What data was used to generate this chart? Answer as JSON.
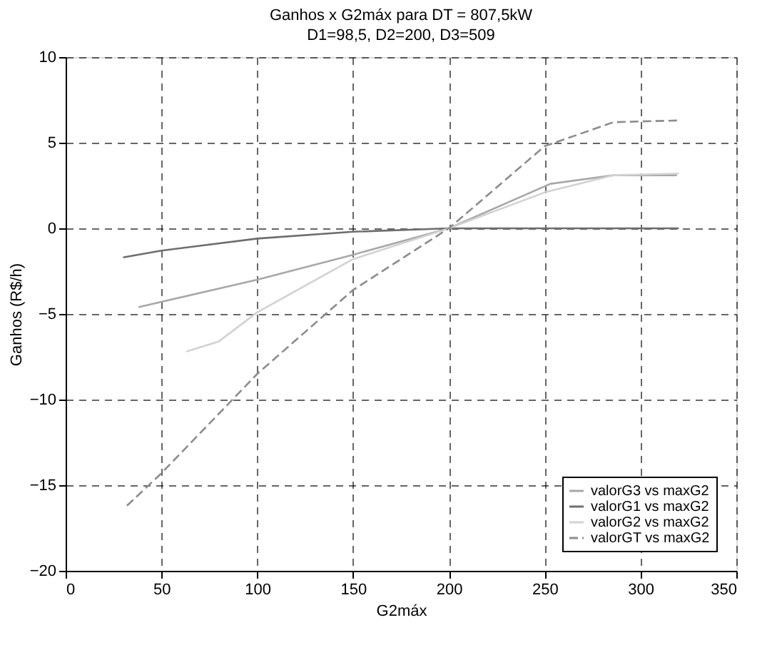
{
  "chart_data": {
    "type": "line",
    "title": "Ganhos x G2máx para DT = 807,5kW",
    "subtitle": "D1=98,5, D2=200, D3=509",
    "xlabel": "G2máx",
    "ylabel": "Ganhos (R$/h)",
    "xlim": [
      0,
      350
    ],
    "xticks": [
      0,
      50,
      100,
      150,
      200,
      250,
      300,
      350
    ],
    "ylim": [
      -20,
      10
    ],
    "yticks": [
      -20,
      -15,
      -10,
      -5,
      0,
      5,
      10
    ],
    "grid": true,
    "legend": "bottom right",
    "marker": "none",
    "series": [
      {
        "name": "valorG3 vs maxG2",
        "color": "#a8a8a8",
        "line_style": "solid",
        "x": [
          38,
          100,
          148,
          200,
          253,
          286,
          319
        ],
        "values": [
          -4.6,
          -3.0,
          -1.6,
          0,
          2.6,
          3.1,
          3.1
        ]
      },
      {
        "name": "valorG1 vs maxG2",
        "color": "#6e6e6e",
        "line_style": "solid",
        "x": [
          30,
          50,
          100,
          150,
          200,
          250,
          320
        ],
        "values": [
          -1.7,
          -1.3,
          -0.6,
          -0.2,
          0,
          0,
          0
        ]
      },
      {
        "name": "valorG2 vs maxG2",
        "color": "#d2d2d2",
        "line_style": "solid",
        "x": [
          63,
          80,
          100,
          150,
          200,
          250,
          286,
          320
        ],
        "values": [
          -7.2,
          -6.6,
          -4.9,
          -1.8,
          0,
          2.1,
          3.1,
          3.2
        ]
      },
      {
        "name": "valorGT vs maxG2",
        "color": "#8c8c8c",
        "line_style": "dashed",
        "x": [
          32,
          50,
          100,
          150,
          200,
          250,
          286,
          320
        ],
        "values": [
          -16.2,
          -14.3,
          -8.5,
          -3.6,
          0,
          4.8,
          6.2,
          6.3
        ]
      }
    ]
  }
}
